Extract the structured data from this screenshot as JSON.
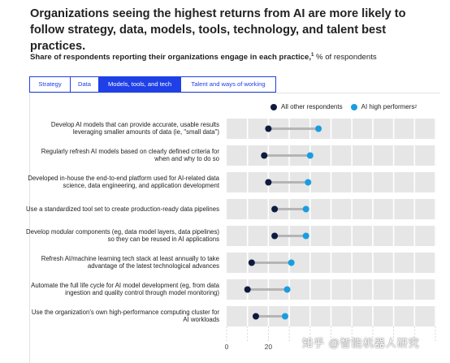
{
  "title": "Organizations seeing the highest returns from AI are more likely to follow strategy, data, models, tools, technology, and talent best practices.",
  "subtitle": {
    "bold": "Share of respondents reporting their organizations engage in each practice,",
    "footnote": "1",
    "unit": " % of respondents"
  },
  "tabs": [
    {
      "label": "Strategy",
      "active": false
    },
    {
      "label": "Data",
      "active": false
    },
    {
      "label": "Models, tools, and tech",
      "active": true
    },
    {
      "label": "Talent and ways of working",
      "active": false
    }
  ],
  "legend": {
    "all": {
      "label": "All other respondents",
      "color": "#0d1b3e"
    },
    "high": {
      "label": "AI high performers",
      "footnote": "2",
      "color": "#1a9de0"
    }
  },
  "watermark": "知乎 @智能机器人研究",
  "chart_data": {
    "type": "dumbbell",
    "xlim": [
      0,
      100
    ],
    "x_ticks": [
      "0",
      "20"
    ],
    "grid": true,
    "legend_position": "top-right",
    "series": [
      {
        "name": "All other respondents",
        "key": "all"
      },
      {
        "name": "AI high performers",
        "key": "high"
      }
    ],
    "rows": [
      {
        "label": "Develop AI models that can provide accurate, usable results leveraging smaller amounts of data (ie, \"small data\")",
        "all": 20,
        "high": 44
      },
      {
        "label": "Regularly refresh AI models based on clearly defined criteria for when and why to do so",
        "all": 18,
        "high": 40
      },
      {
        "label": "Developed in-house the end-to-end platform used for AI-related data science, data engineering, and application development",
        "all": 20,
        "high": 39
      },
      {
        "label": "Use a standardized tool set to create production-ready data pipelines",
        "all": 23,
        "high": 38
      },
      {
        "label": "Develop modular components (eg, data model layers, data pipelines) so they can be reused in AI applications",
        "all": 23,
        "high": 38
      },
      {
        "label": "Refresh AI/machine learning tech stack at least annually to take advantage of the latest technological advances",
        "all": 12,
        "high": 31
      },
      {
        "label": "Automate the full life cycle for AI model development (eg, from data ingestion and quality control through model monitoring)",
        "all": 10,
        "high": 29
      },
      {
        "label": "Use the organization's own high-performance computing cluster for AI workloads",
        "all": 14,
        "high": 28
      }
    ]
  }
}
